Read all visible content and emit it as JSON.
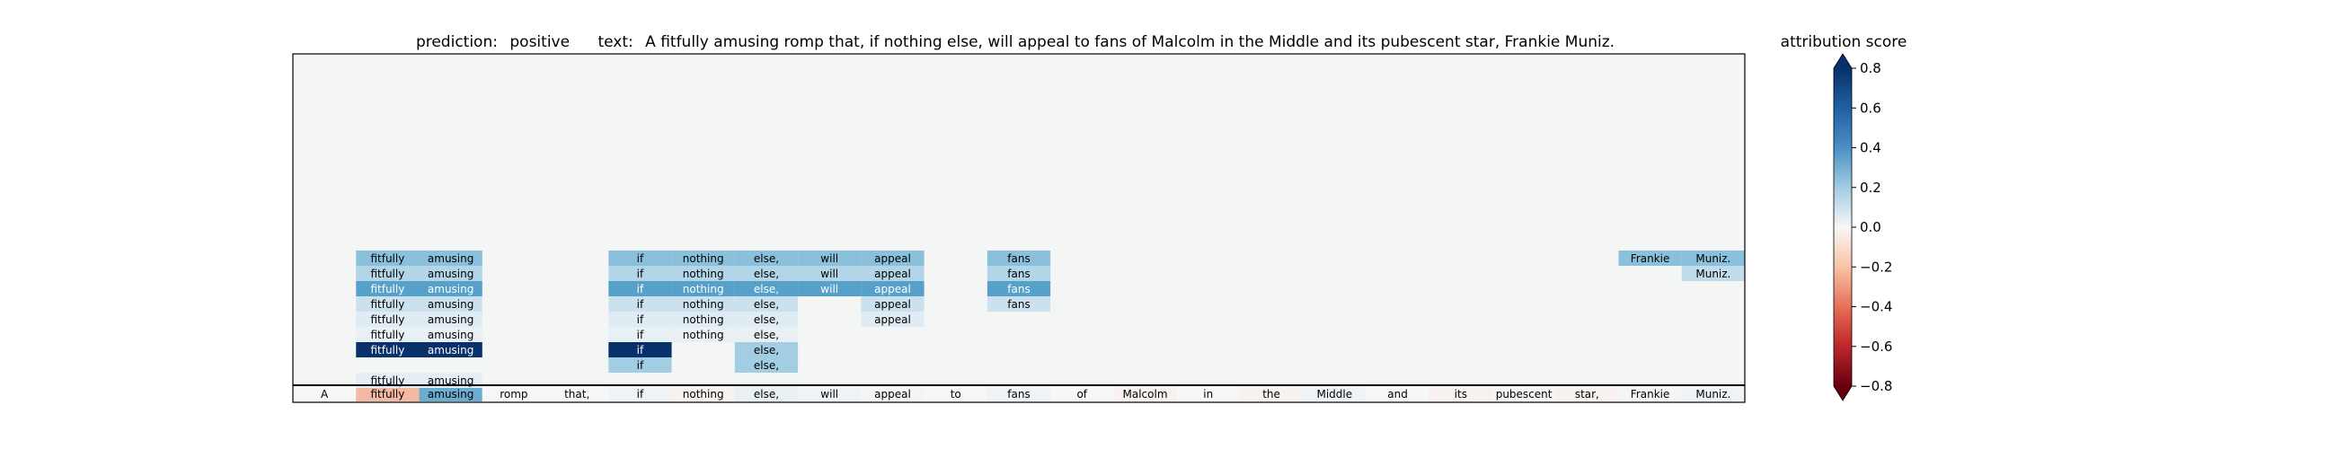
{
  "title": {
    "prediction_label": "prediction:",
    "prediction": "positive",
    "text_label": "text:",
    "text": "A fitfully amusing romp that, if nothing else, will appeal to fans of Malcolm in the Middle and its pubescent star, Frankie Muniz."
  },
  "colorbar": {
    "label": "attribution score",
    "ticks": [
      "0.8",
      "0.6",
      "0.4",
      "0.2",
      "0.0",
      "−0.2",
      "−0.4",
      "−0.6",
      "−0.8"
    ]
  },
  "colors": {
    "background": "#f4f6f6",
    "strong_positive": "#08306b",
    "negative": "#f4b9a3",
    "neutral": "#f7f7f7"
  },
  "chart_data": {
    "type": "heatmap",
    "title": "prediction:  positive     text:  A fitfully amusing romp that, if nothing else, will appeal to fans of Malcolm in the Middle and its pubescent star, Frankie Muniz.",
    "colorbar_label": "attribution score",
    "vlim": [
      -0.8,
      0.8
    ],
    "colorbar_ticks": [
      0.8,
      0.6,
      0.4,
      0.2,
      0.0,
      -0.2,
      -0.4,
      -0.6,
      -0.8
    ],
    "tokens": [
      "A",
      "fitfully",
      "amusing",
      "romp",
      "that,",
      "if",
      "nothing",
      "else,",
      "will",
      "appeal",
      "to",
      "fans",
      "of",
      "Malcolm",
      "in",
      "the",
      "Middle",
      "and",
      "its",
      "pubescent",
      "star,",
      "Frankie",
      "Muniz."
    ],
    "base_row": [
      0.0,
      -0.2,
      0.5,
      0.0,
      0.0,
      0.04,
      -0.02,
      0.08,
      0.04,
      0.02,
      0.0,
      0.04,
      0.0,
      -0.02,
      0.0,
      -0.02,
      0.04,
      0.0,
      -0.02,
      0.02,
      -0.02,
      0.02,
      0.04
    ],
    "layers": [
      {
        "cells": [
          [
            1,
            0.42
          ],
          [
            2,
            0.42
          ],
          [
            5,
            0.42
          ],
          [
            6,
            0.42
          ],
          [
            7,
            0.42
          ],
          [
            8,
            0.42
          ],
          [
            9,
            0.42
          ],
          [
            11,
            0.42
          ],
          [
            21,
            0.42
          ],
          [
            22,
            0.42
          ]
        ]
      },
      {
        "cells": [
          [
            1,
            0.3
          ],
          [
            2,
            0.3
          ],
          [
            5,
            0.3
          ],
          [
            6,
            0.3
          ],
          [
            7,
            0.3
          ],
          [
            8,
            0.3
          ],
          [
            9,
            0.3
          ],
          [
            11,
            0.3
          ],
          [
            22,
            0.25
          ]
        ]
      },
      {
        "cells": [
          [
            1,
            0.55
          ],
          [
            2,
            0.55
          ],
          [
            5,
            0.55
          ],
          [
            6,
            0.55
          ],
          [
            7,
            0.55
          ],
          [
            8,
            0.55
          ],
          [
            9,
            0.55
          ],
          [
            11,
            0.55
          ]
        ]
      },
      {
        "cells": [
          [
            1,
            0.22
          ],
          [
            2,
            0.22
          ],
          [
            5,
            0.22
          ],
          [
            6,
            0.22
          ],
          [
            7,
            0.22
          ],
          [
            9,
            0.22
          ],
          [
            11,
            0.22
          ]
        ]
      },
      {
        "cells": [
          [
            1,
            0.12
          ],
          [
            2,
            0.12
          ],
          [
            5,
            0.12
          ],
          [
            6,
            0.12
          ],
          [
            7,
            0.12
          ],
          [
            9,
            0.12
          ]
        ]
      },
      {
        "cells": [
          [
            1,
            0.08
          ],
          [
            2,
            0.08
          ],
          [
            5,
            0.08
          ],
          [
            6,
            0.08
          ],
          [
            7,
            0.08
          ]
        ]
      },
      {
        "cells": [
          [
            1,
            0.8
          ],
          [
            2,
            0.8
          ],
          [
            5,
            0.8
          ],
          [
            7,
            0.35
          ]
        ]
      },
      {
        "cells": [
          [
            5,
            0.35
          ],
          [
            7,
            0.35
          ]
        ]
      },
      {
        "cells": [
          [
            1,
            0.1
          ],
          [
            2,
            0.1
          ]
        ]
      }
    ]
  }
}
